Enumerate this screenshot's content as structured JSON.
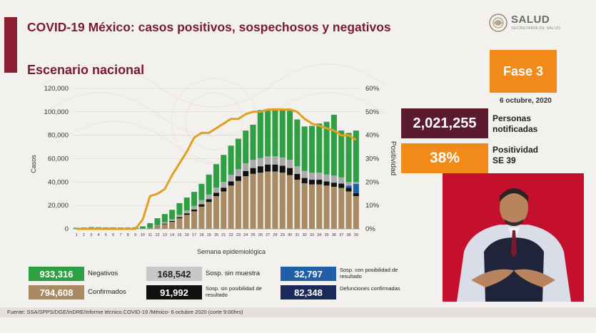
{
  "header": {
    "title": "COVID-19 México: casos positivos, sospechosos y negativos",
    "subtitle": "Escenario nacional",
    "logo_text": "SALUD",
    "logo_sub": "SECRETARÍA DE SALUD"
  },
  "fase": {
    "label": "Fase 3",
    "date": "6 octubre, 2020"
  },
  "stats": [
    {
      "value": "2,021,255",
      "label_line1": "Personas",
      "label_line2": "notificadas"
    },
    {
      "value": "38%",
      "label_line1": "Positividad",
      "label_line2": "SE 39"
    }
  ],
  "legend": {
    "negativos": {
      "value": "933,316",
      "label": "Negativos"
    },
    "confirmados": {
      "value": "794,608",
      "label": "Confirmados"
    },
    "sosp_sin_muestra": {
      "value": "168,542",
      "label": "Sosp. sin muestra"
    },
    "sosp_sin_posibilidad": {
      "value": "91,992",
      "label": "Sosp. sin posibilidad de resultado"
    },
    "sosp_con_posibilidad": {
      "value": "32,797",
      "label": "Sosp. con posibilidad de resultado"
    },
    "defunciones": {
      "value": "82,348",
      "label": "Defunciones confirmadas"
    }
  },
  "colors": {
    "negativos": "#2ea043",
    "confirmados": "#a88a63",
    "sosp_sin_muestra": "#aaaaaa",
    "sosp_sin_posibilidad": "#111111",
    "sosp_con_posibilidad": "#1f5fa8",
    "defunciones": "#1a2a5a",
    "positividad": "#e0a020"
  },
  "source": "Fuente: SSA/SPPS/DGE/InDRE/Informe técnico.COVID-19 /México- 6 octubre 2020 (corte 9:00hrs)",
  "chart_data": {
    "type": "bar",
    "stacked": true,
    "xlabel": "Semana epidemiológica",
    "ylabel": "Casos",
    "y2label": "Positividad",
    "ylim": [
      0,
      120000
    ],
    "y2lim": [
      0,
      60
    ],
    "yticks": [
      "0",
      "20,000",
      "40,000",
      "60,000",
      "80,000",
      "100,000",
      "120,000"
    ],
    "y2ticks": [
      "0%",
      "10%",
      "20%",
      "30%",
      "40%",
      "50%",
      "60%"
    ],
    "categories": [
      "1",
      "2",
      "3",
      "4",
      "5",
      "6",
      "7",
      "8",
      "9",
      "10",
      "11",
      "12",
      "13",
      "14",
      "15",
      "16",
      "17",
      "18",
      "19",
      "20",
      "21",
      "22",
      "23",
      "24",
      "25",
      "26",
      "27",
      "28",
      "29",
      "30",
      "31",
      "32",
      "33",
      "34",
      "35",
      "36",
      "37",
      "38",
      "39"
    ],
    "series": [
      {
        "name": "Confirmados",
        "values": [
          0,
          0,
          0,
          0,
          0,
          0,
          0,
          0,
          0,
          100,
          500,
          2000,
          4000,
          6000,
          9000,
          12000,
          15000,
          19000,
          23000,
          28000,
          32000,
          37000,
          41000,
          45000,
          47000,
          48000,
          49000,
          49000,
          48000,
          46000,
          42000,
          39000,
          38000,
          38000,
          37000,
          36000,
          35000,
          32000,
          28000
        ]
      },
      {
        "name": "Sosp. sin posibilidad de resultado",
        "values": [
          0,
          0,
          0,
          0,
          0,
          0,
          0,
          0,
          0,
          0,
          100,
          300,
          500,
          800,
          1000,
          1300,
          1600,
          2000,
          2400,
          2800,
          3200,
          3600,
          4000,
          4500,
          5000,
          5500,
          6000,
          6000,
          6000,
          6000,
          5000,
          4500,
          4000,
          4000,
          3500,
          3500,
          3500,
          3000,
          2500
        ]
      },
      {
        "name": "Sosp. con posibilidad de resultado",
        "values": [
          0,
          0,
          0,
          0,
          0,
          0,
          0,
          0,
          0,
          0,
          0,
          0,
          0,
          0,
          0,
          0,
          0,
          0,
          0,
          0,
          0,
          0,
          0,
          0,
          0,
          0,
          0,
          0,
          0,
          0,
          0,
          0,
          0,
          0,
          0,
          0,
          500,
          2000,
          8000
        ]
      },
      {
        "name": "Sosp. sin muestra",
        "values": [
          0,
          0,
          0,
          0,
          0,
          0,
          0,
          0,
          0,
          100,
          300,
          800,
          1200,
          1500,
          2000,
          2500,
          3000,
          3500,
          4000,
          4500,
          5000,
          5500,
          6000,
          6500,
          7000,
          7000,
          7000,
          7000,
          7000,
          7000,
          6500,
          6000,
          6000,
          6000,
          6000,
          6000,
          5000,
          3000,
          1500
        ]
      },
      {
        "name": "Negativos",
        "values": [
          1000,
          1200,
          1500,
          1400,
          1300,
          1300,
          1200,
          1200,
          1400,
          2000,
          4000,
          6000,
          7000,
          8000,
          10000,
          11000,
          12000,
          14000,
          17000,
          20000,
          23000,
          25000,
          26000,
          28000,
          30000,
          41000,
          39000,
          41000,
          41000,
          42000,
          40000,
          38000,
          40000,
          42000,
          45000,
          52000,
          40000,
          42000,
          44000
        ]
      }
    ],
    "line": {
      "name": "Positividad",
      "values": [
        0,
        0,
        0,
        0,
        0,
        0,
        0,
        0,
        0,
        4,
        14,
        15,
        17,
        23,
        28,
        33,
        39,
        41,
        41,
        43,
        45,
        47,
        47,
        49,
        50,
        50,
        51,
        51,
        51,
        51,
        50,
        47,
        45,
        44,
        43,
        42,
        40,
        40,
        38
      ]
    }
  }
}
